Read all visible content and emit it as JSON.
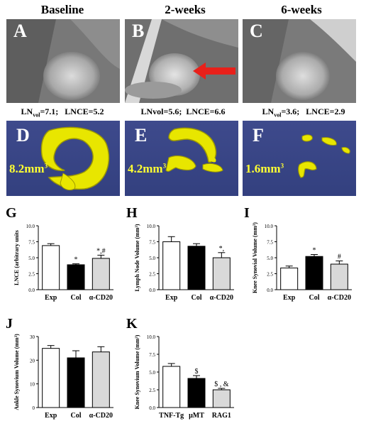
{
  "headers": [
    "Baseline",
    "2-weeks",
    "6-weeks"
  ],
  "mri_panels": [
    "A",
    "B",
    "C"
  ],
  "measurements": [
    {
      "prefix": "LN",
      "sub": "vol",
      "value": "=7.1;",
      "lnce": "LNCE=5.2"
    },
    {
      "prefix": "LNvol",
      "sub": "",
      "value": "=5.6;",
      "lnce": "LNCE=6.6"
    },
    {
      "prefix": "LN",
      "sub": "vol",
      "value": "=3.6;",
      "lnce": "LNCE=2.9"
    }
  ],
  "render_panels": [
    {
      "label": "D",
      "volume": "8.2mm",
      "exp": "3"
    },
    {
      "label": "E",
      "volume": "4.2mm",
      "exp": "3"
    },
    {
      "label": "F",
      "volume": "1.6mm",
      "exp": "3"
    }
  ],
  "colors": {
    "render_bg": "#3a4686",
    "mesh": "#e8e600",
    "arrow": "#e8201a",
    "bar_col": "#000000",
    "bar_cd20": "#d9d9d9",
    "bar_exp": "#ffffff"
  },
  "chart_data": [
    {
      "type": "bar",
      "label": "G",
      "ylabel": "LNCE (arbitrary units",
      "ylim": [
        0,
        10.0
      ],
      "yticks": [
        "0.0",
        "2.5",
        "5.0",
        "7.5",
        "10.0"
      ],
      "categories": [
        "Exp",
        "Col",
        "α-CD20"
      ],
      "values": [
        6.9,
        3.9,
        4.9
      ],
      "errors": [
        0.3,
        0.15,
        0.5
      ],
      "annotations": [
        "",
        "*",
        "*,#"
      ]
    },
    {
      "type": "bar",
      "label": "H",
      "ylabel": "Lymph Node Volume (mm³)",
      "ylim": [
        0,
        10.0
      ],
      "yticks": [
        "0.0",
        "2.5",
        "5.0",
        "7.5",
        "10.0"
      ],
      "categories": [
        "Exp",
        "Col",
        "α-CD20"
      ],
      "values": [
        7.5,
        6.8,
        5.0
      ],
      "errors": [
        0.8,
        0.4,
        0.8
      ],
      "annotations": [
        "",
        "",
        "*,"
      ]
    },
    {
      "type": "bar",
      "label": "I",
      "ylabel": "Knee Synovial Volume (mm³)",
      "ylim": [
        0,
        10.0
      ],
      "yticks": [
        "0.0",
        "2.5",
        "5.0",
        "7.5",
        "10.0"
      ],
      "categories": [
        "Exp",
        "Col",
        "α-CD20"
      ],
      "values": [
        3.4,
        5.2,
        4.0
      ],
      "errors": [
        0.3,
        0.3,
        0.5
      ],
      "annotations": [
        "",
        "*",
        "#"
      ]
    },
    {
      "type": "bar",
      "label": "J",
      "ylabel": "Ankle Synovium Volume (mm³)",
      "ylim": [
        0,
        30
      ],
      "yticks": [
        "0",
        "10",
        "20",
        "30"
      ],
      "categories": [
        "Exp",
        "Col",
        "α-CD20"
      ],
      "values": [
        25,
        21,
        23.5
      ],
      "errors": [
        1.2,
        3.0,
        2.2
      ],
      "annotations": [
        "",
        "",
        ""
      ]
    },
    {
      "type": "bar",
      "label": "K",
      "ylabel": "Knee Synovium Volume (mm³)",
      "ylim": [
        0,
        10.0
      ],
      "yticks": [
        "0.0",
        "2.5",
        "5.0",
        "7.5",
        "10.0"
      ],
      "categories": [
        "TNF-Tg",
        "μMT",
        "RAG1"
      ],
      "values": [
        5.8,
        4.1,
        2.5
      ],
      "errors": [
        0.4,
        0.4,
        0.2
      ],
      "annotations": [
        "",
        "$",
        "$ , &"
      ]
    }
  ]
}
